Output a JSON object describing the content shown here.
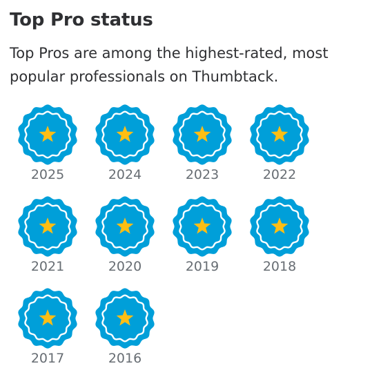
{
  "header": {
    "title": "Top Pro status",
    "description": "Top Pros are among the highest-rated, most popular professionals on Thumbtack."
  },
  "badges": [
    "2025",
    "2024",
    "2023",
    "2022",
    "2021",
    "2020",
    "2019",
    "2018",
    "2017",
    "2016"
  ]
}
